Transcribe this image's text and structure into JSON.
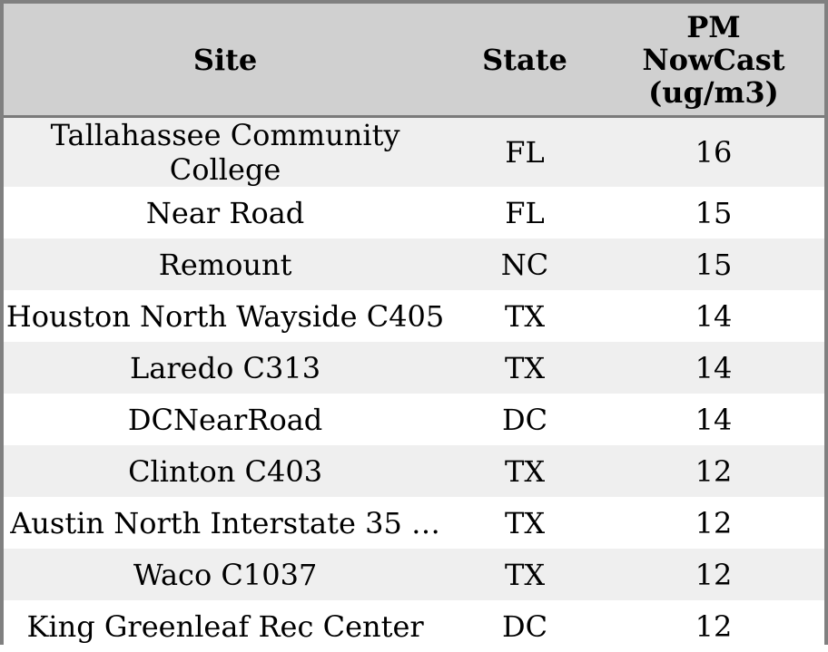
{
  "table": {
    "columns": [
      {
        "id": "site",
        "label": "Site"
      },
      {
        "id": "state",
        "label": "State"
      },
      {
        "id": "pm_nowcast",
        "label": "PM\nNowCast\n(ug/m3)"
      }
    ],
    "rows": [
      {
        "site": "Tallahassee Community College",
        "state": "FL",
        "pm_nowcast": "16"
      },
      {
        "site": "Near Road",
        "state": "FL",
        "pm_nowcast": "15"
      },
      {
        "site": "Remount",
        "state": "NC",
        "pm_nowcast": "15"
      },
      {
        "site": "Houston North Wayside C405",
        "state": "TX",
        "pm_nowcast": "14"
      },
      {
        "site": "Laredo C313",
        "state": "TX",
        "pm_nowcast": "14"
      },
      {
        "site": "DCNearRoad",
        "state": "DC",
        "pm_nowcast": "14"
      },
      {
        "site": "Clinton C403",
        "state": "TX",
        "pm_nowcast": "12"
      },
      {
        "site": "Austin North Interstate 35 …",
        "state": "TX",
        "pm_nowcast": "12"
      },
      {
        "site": "Waco C1037",
        "state": "TX",
        "pm_nowcast": "12"
      },
      {
        "site": "King Greenleaf Rec Center",
        "state": "DC",
        "pm_nowcast": "12"
      }
    ]
  },
  "colors": {
    "header_bg": "#d0d0d0",
    "row_alt_bg": "#efefef",
    "row_bg": "#ffffff",
    "outer_border": "#808080",
    "header_border": "#7a7a7a",
    "text": "#000000"
  }
}
